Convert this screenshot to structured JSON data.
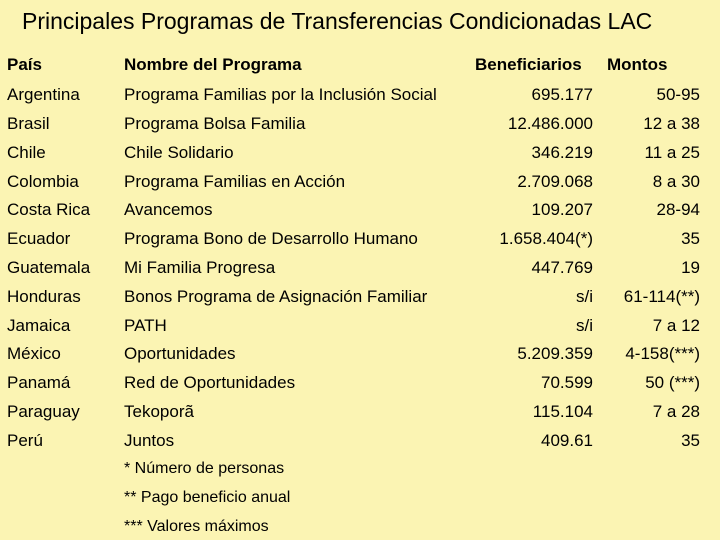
{
  "title": "Principales Programas de Transferencias Condicionadas LAC",
  "headers": {
    "country": "País",
    "program": "Nombre del Programa",
    "beneficiaries": "Beneficiarios",
    "amounts": "Montos"
  },
  "rows": [
    {
      "country": "Argentina",
      "program": "Programa Familias por la Inclusión Social",
      "beneficiaries": "695.177",
      "amount": "50-95"
    },
    {
      "country": "Brasil",
      "program": "Programa Bolsa Familia",
      "beneficiaries": "12.486.000",
      "amount": "12 a 38"
    },
    {
      "country": "Chile",
      "program": "Chile Solidario",
      "beneficiaries": "346.219",
      "amount": "11 a 25"
    },
    {
      "country": "Colombia",
      "program": "Programa Familias en Acción",
      "beneficiaries": "2.709.068",
      "amount": "8 a 30"
    },
    {
      "country": "Costa Rica",
      "program": "Avancemos",
      "beneficiaries": "109.207",
      "amount": "28-94"
    },
    {
      "country": "Ecuador",
      "program": "Programa Bono de Desarrollo Humano",
      "beneficiaries": "1.658.404(*)",
      "amount": "35"
    },
    {
      "country": "Guatemala",
      "program": "Mi Familia Progresa",
      "beneficiaries": "447.769",
      "amount": "19"
    },
    {
      "country": "Honduras",
      "program": "Bonos Programa de Asignación Familiar",
      "beneficiaries": "s/i",
      "amount": "61-114(**)"
    },
    {
      "country": "Jamaica",
      "program": "PATH",
      "beneficiaries": "s/i",
      "amount": "7 a 12"
    },
    {
      "country": "México",
      "program": "Oportunidades",
      "beneficiaries": "5.209.359",
      "amount": "4-158(***)"
    },
    {
      "country": "Panamá",
      "program": "Red de Oportunidades",
      "beneficiaries": "70.599",
      "amount": "50 (***)"
    },
    {
      "country": "Paraguay",
      "program": "Tekoporã",
      "beneficiaries": "115.104",
      "amount": "7 a 28"
    },
    {
      "country": "Perú",
      "program": "Juntos",
      "beneficiaries": "409.61",
      "amount": "35"
    }
  ],
  "notes": [
    "* Número de personas",
    "** Pago beneficio anual",
    "*** Valores máximos"
  ]
}
